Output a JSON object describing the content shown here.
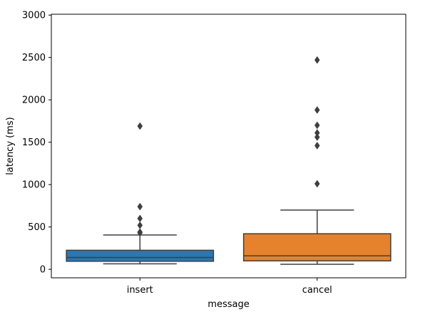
{
  "chart_data": {
    "type": "box",
    "xlabel": "message",
    "ylabel": "latency (ms)",
    "ylim": [
      -100,
      3010
    ],
    "y_ticks": [
      0,
      500,
      1000,
      1500,
      2000,
      2500,
      3000
    ],
    "grid": false,
    "categories": [
      "insert",
      "cancel"
    ],
    "boxes": [
      {
        "category": "insert",
        "color": "#2a77b1",
        "whisker_low": 65,
        "q1": 95,
        "median": 140,
        "q3": 225,
        "whisker_high": 405,
        "outliers": [
          430,
          440,
          520,
          600,
          740,
          1690
        ]
      },
      {
        "category": "cancel",
        "color": "#e6822b",
        "whisker_low": 60,
        "q1": 100,
        "median": 160,
        "q3": 420,
        "whisker_high": 700,
        "outliers": [
          1010,
          1460,
          1560,
          1610,
          1700,
          1880,
          2470
        ]
      }
    ]
  }
}
